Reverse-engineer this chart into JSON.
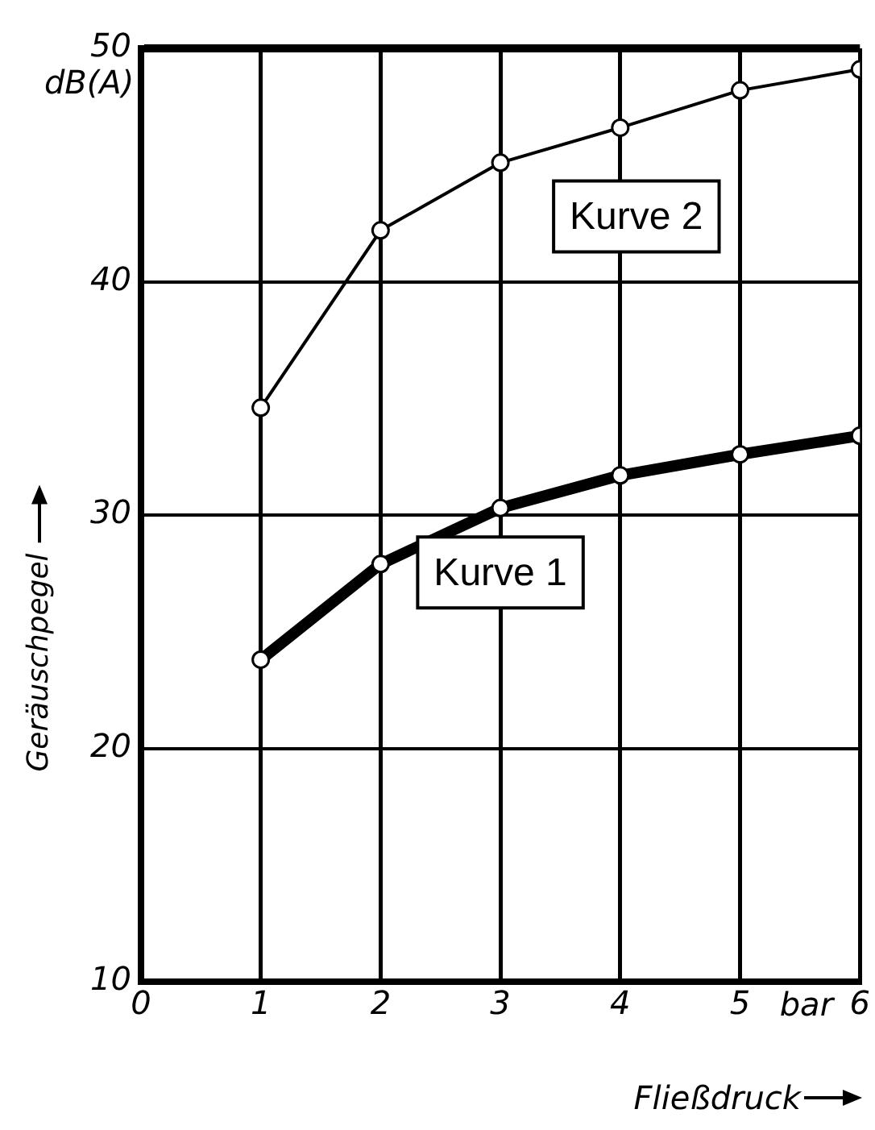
{
  "chart_data": {
    "type": "line",
    "xlabel": "Fließdruck",
    "ylabel": "Geräuschpegel",
    "annotations": [
      "dB(A)",
      "bar"
    ],
    "x": [
      1,
      2,
      3,
      4,
      5,
      6
    ],
    "series": [
      {
        "name": "Kurve 1",
        "color": "#000000",
        "values": [
          23.8,
          27.9,
          30.3,
          31.7,
          32.6,
          33.4
        ]
      },
      {
        "name": "Kurve 2",
        "color": "#000000",
        "values": [
          34.6,
          42.2,
          45.1,
          46.6,
          48.2,
          49.1
        ]
      }
    ],
    "xlim": [
      0,
      6
    ],
    "xticks": [
      0,
      1,
      2,
      3,
      4,
      5,
      6
    ],
    "ylim": [
      10,
      50
    ],
    "yticks": [
      10,
      20,
      30,
      40,
      50
    ],
    "grid": true,
    "legend": false,
    "marker": "circle",
    "line_style": "solid"
  }
}
